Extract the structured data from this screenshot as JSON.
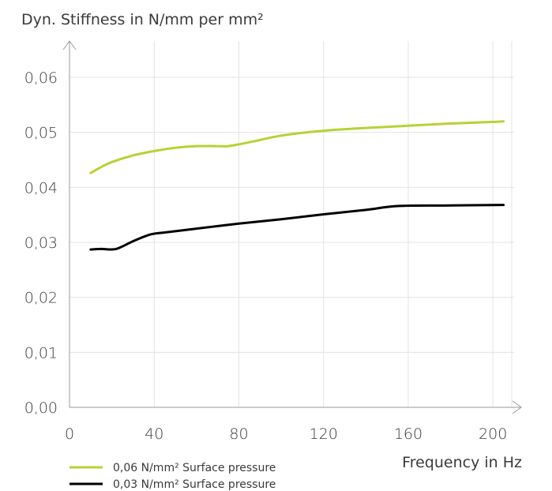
{
  "chart_data": {
    "type": "line",
    "ylabel": "Dyn. Stiffness in N/mm per mm²",
    "xlabel": "Frequency in Hz",
    "xlim": [
      0,
      210
    ],
    "ylim": [
      0,
      0.06
    ],
    "x_ticks": [
      0,
      40,
      80,
      120,
      160,
      200
    ],
    "x_tick_labels": [
      "0",
      "40",
      "80",
      "120",
      "160",
      "200"
    ],
    "y_ticks": [
      0,
      0.01,
      0.02,
      0.03,
      0.04,
      0.05,
      0.06
    ],
    "y_tick_labels": [
      "0,00",
      "0,01",
      "0,02",
      "0,03",
      "0,04",
      "0,05",
      "0,06"
    ],
    "grid": "vertical and horizontal",
    "legend_position": "bottom-left",
    "series": [
      {
        "name": "0,06 N/mm² Surface pressure",
        "color": "#b4d334",
        "x": [
          10,
          15,
          20,
          30,
          40,
          50,
          60,
          70,
          75,
          85,
          100,
          120,
          140,
          160,
          180,
          200,
          205
        ],
        "y": [
          0.0426,
          0.0437,
          0.0446,
          0.0458,
          0.0466,
          0.0472,
          0.0475,
          0.0475,
          0.0475,
          0.0482,
          0.0494,
          0.0503,
          0.0508,
          0.0512,
          0.0516,
          0.0519,
          0.052
        ]
      },
      {
        "name": "0,03 N/mm² Surface pressure",
        "color": "#000000",
        "x": [
          10,
          15,
          22,
          30,
          38,
          45,
          60,
          80,
          100,
          120,
          140,
          155,
          180,
          205
        ],
        "y": [
          0.0287,
          0.0288,
          0.0288,
          0.0302,
          0.0314,
          0.0318,
          0.0325,
          0.0334,
          0.0342,
          0.0351,
          0.0359,
          0.0366,
          0.0367,
          0.0368
        ]
      }
    ]
  }
}
